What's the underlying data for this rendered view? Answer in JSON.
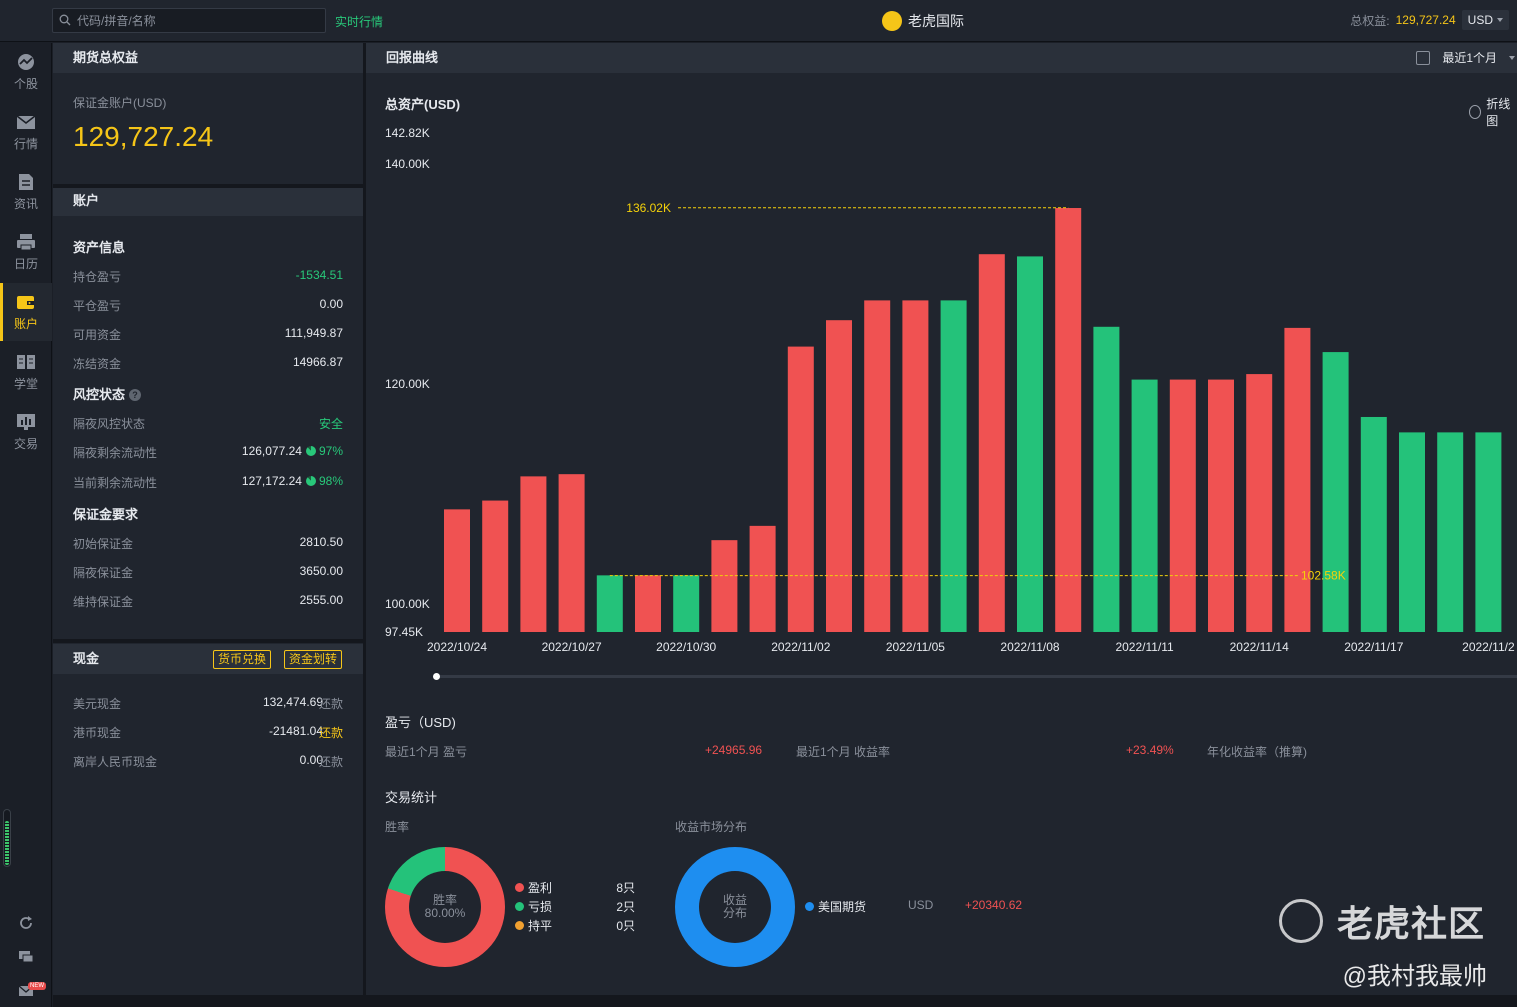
{
  "topbar": {
    "search_placeholder": "代码/拼音/名称",
    "realtime_label": "实时行情",
    "brand": "老虎国际",
    "equity_label": "总权益:",
    "equity_value": "129,727.24",
    "currency": "USD"
  },
  "nav": {
    "items": [
      {
        "label": "个股",
        "icon": "chart-circle-icon"
      },
      {
        "label": "行情",
        "icon": "envelope-icon"
      },
      {
        "label": "资讯",
        "icon": "document-icon"
      },
      {
        "label": "日历",
        "icon": "printer-icon"
      },
      {
        "label": "账户",
        "icon": "wallet-icon",
        "active": true
      },
      {
        "label": "学堂",
        "icon": "book-icon"
      },
      {
        "label": "交易",
        "icon": "trade-chart-icon"
      }
    ],
    "level_indicator": 0.75,
    "new_badge": "NEW"
  },
  "futures": {
    "header": "期货总权益",
    "margin_account_label": "保证金账户(USD)",
    "equity": "129,727.24"
  },
  "account": {
    "header": "账户",
    "asset_info_title": "资产信息",
    "asset_rows": [
      {
        "label": "持仓盈亏",
        "value": "-1534.51",
        "color": "green"
      },
      {
        "label": "平仓盈亏",
        "value": "0.00"
      },
      {
        "label": "可用资金",
        "value": "111,949.87"
      },
      {
        "label": "冻结资金",
        "value": "14966.87"
      }
    ],
    "risk_title": "风控状态",
    "risk_rows": [
      {
        "label": "隔夜风控状态",
        "value": "安全",
        "color": "green"
      },
      {
        "label": "隔夜剩余流动性",
        "value": "126,077.24",
        "pct": "97%"
      },
      {
        "label": "当前剩余流动性",
        "value": "127,172.24",
        "pct": "98%"
      }
    ],
    "margin_title": "保证金要求",
    "margin_rows": [
      {
        "label": "初始保证金",
        "value": "2810.50"
      },
      {
        "label": "隔夜保证金",
        "value": "3650.00"
      },
      {
        "label": "维持保证金",
        "value": "2555.00"
      }
    ]
  },
  "cash": {
    "header": "现金",
    "exchange_btn": "货币兑换",
    "transfer_btn": "资金划转",
    "rows": [
      {
        "label": "美元现金",
        "value": "132,474.69",
        "action": "还款",
        "action_color": "muted"
      },
      {
        "label": "港币现金",
        "value": "-21481.04",
        "action": "还款",
        "action_color": "yellow"
      },
      {
        "label": "离岸人民币现金",
        "value": "0.00",
        "action": "还款",
        "action_color": "muted"
      }
    ]
  },
  "returns": {
    "header": "回报曲线",
    "period": "最近1个月",
    "chart_title": "总资产(USD)",
    "line_toggle": "折线图"
  },
  "chart_data": {
    "type": "bar",
    "y_ticks": [
      "142.82K",
      "140.00K",
      "120.00K",
      "100.00K",
      "97.45K"
    ],
    "x_ticks": [
      "2022/10/24",
      "2022/10/27",
      "2022/10/30",
      "2022/11/02",
      "2022/11/05",
      "2022/11/08",
      "2022/11/11",
      "2022/11/14",
      "2022/11/17",
      "2022/11/2"
    ],
    "ylim": [
      97.45,
      142.82
    ],
    "max_marker": {
      "label": "136.02K",
      "value": 136.02
    },
    "min_marker": {
      "label": "102.58K",
      "value": 102.58
    },
    "values": [
      108.6,
      109.4,
      111.6,
      111.8,
      102.6,
      102.6,
      102.6,
      105.8,
      107.1,
      123.4,
      125.8,
      127.6,
      127.6,
      127.6,
      131.8,
      131.6,
      136.0,
      125.2,
      120.4,
      120.4,
      120.4,
      120.9,
      125.1,
      122.9,
      117.0,
      115.6,
      115.6,
      115.6
    ],
    "colors": [
      "red",
      "red",
      "red",
      "red",
      "green",
      "red",
      "green",
      "red",
      "red",
      "red",
      "red",
      "red",
      "red",
      "green",
      "red",
      "green",
      "red",
      "green",
      "green",
      "red",
      "red",
      "red",
      "red",
      "green",
      "green",
      "green",
      "green",
      "green"
    ],
    "palette": {
      "red": "#f05252",
      "green": "#24c27a",
      "marker": "#f5d20a"
    }
  },
  "pnl": {
    "title": "盈亏（USD)",
    "month_pnl_label": "最近1个月 盈亏",
    "month_pnl_value": "+24965.96",
    "month_return_label": "最近1个月 收益率",
    "month_return_value": "+23.49%",
    "annual_label": "年化收益率（推算)"
  },
  "stats": {
    "title": "交易统计",
    "winrate_label": "胜率",
    "winrate_center_label": "胜率",
    "winrate_value": "80.00%",
    "winrate_legend": [
      {
        "label": "盈利",
        "count": "8只",
        "color": "#f05252"
      },
      {
        "label": "亏损",
        "count": "2只",
        "color": "#24c27a"
      },
      {
        "label": "持平",
        "count": "0只",
        "color": "#f0a030"
      }
    ],
    "win_fraction": 0.8,
    "market_label": "收益市场分布",
    "market_center": [
      "收益",
      "分布"
    ],
    "market_legend": {
      "label": "美国期货",
      "currency": "USD",
      "value": "+20340.62",
      "color": "#1e8ef0"
    }
  },
  "watermark": {
    "brand": "老虎社区",
    "author": "@我村我最帅"
  }
}
